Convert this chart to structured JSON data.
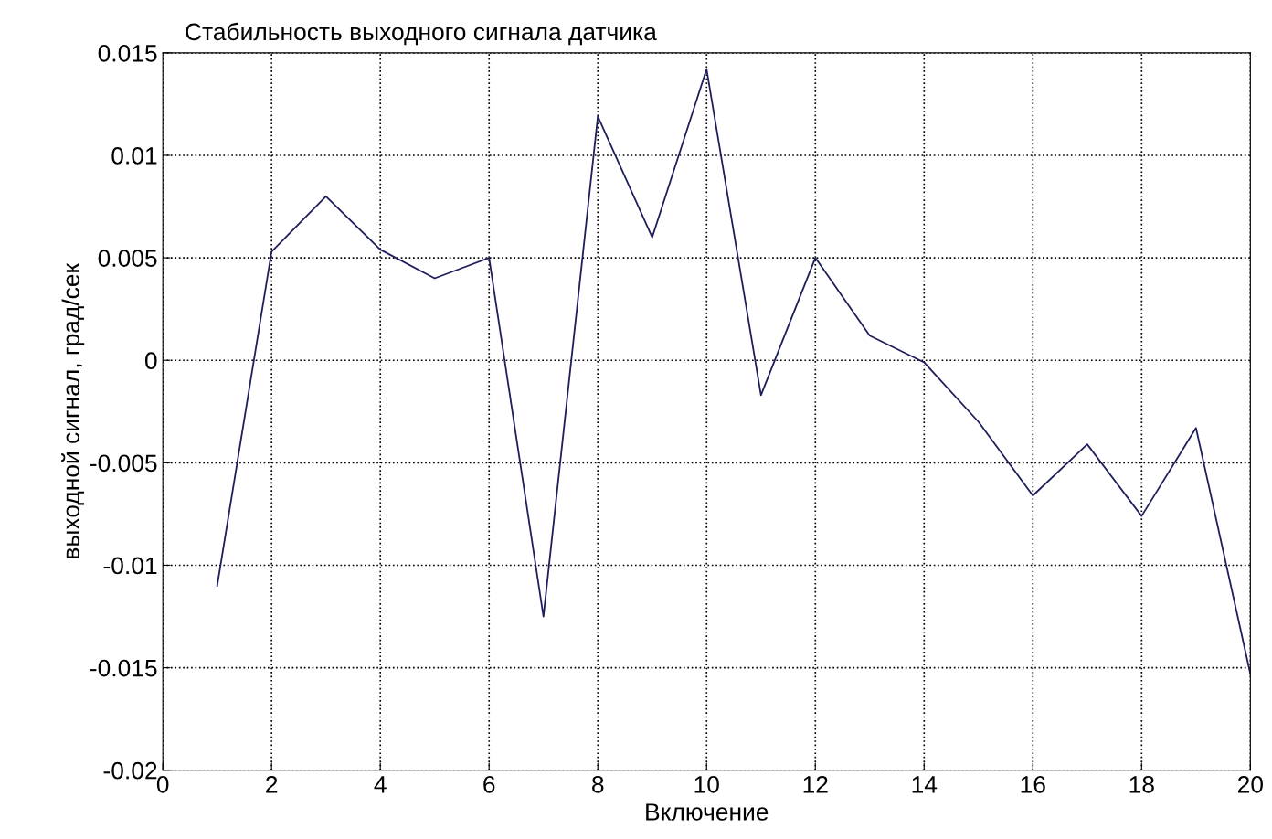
{
  "chart_data": {
    "type": "line",
    "title": "Стабильность выходного сигнала датчика",
    "xlabel": "Включение",
    "ylabel": "выходной сигнал, град/сек",
    "x": [
      1,
      2,
      3,
      4,
      5,
      6,
      7,
      8,
      9,
      10,
      11,
      12,
      13,
      14,
      15,
      16,
      17,
      18,
      19,
      20
    ],
    "series": [
      {
        "color": "#1f1f5e",
        "values": [
          -0.011,
          0.0053,
          0.008,
          0.0054,
          0.004,
          0.005,
          -0.0125,
          0.0119,
          0.006,
          0.0142,
          -0.0017,
          0.005,
          0.0012,
          -0.0001,
          -0.003,
          -0.0066,
          -0.0041,
          -0.0076,
          -0.0033,
          -0.0153
        ]
      }
    ],
    "xlim": [
      0,
      20
    ],
    "xticks": [
      0,
      2,
      4,
      6,
      8,
      10,
      12,
      14,
      16,
      18,
      20
    ],
    "ylim": [
      -0.02,
      0.015
    ],
    "yticks": [
      -0.02,
      -0.015,
      -0.01,
      -0.005,
      0,
      0.005,
      0.01,
      0.015
    ],
    "grid": true,
    "line_style": "solid",
    "legend": false
  }
}
